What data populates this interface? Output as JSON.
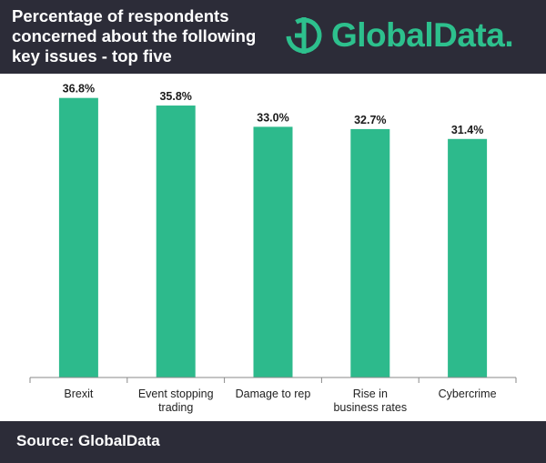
{
  "header": {
    "title": "Percentage of respondents concerned about the following key issues - top five",
    "logo_text": "GlobalData."
  },
  "footer": {
    "source": "Source: GlobalData"
  },
  "colors": {
    "bar": "#2dba8c",
    "header_bg": "#2c2c38",
    "brand": "#2dc08d"
  },
  "chart_data": {
    "type": "bar",
    "title": "Percentage of respondents concerned about the following key issues - top five",
    "categories": [
      [
        "Brexit"
      ],
      [
        "Event stopping",
        "trading"
      ],
      [
        "Damage to rep"
      ],
      [
        "Rise in",
        "business rates"
      ],
      [
        "Cybercrime"
      ]
    ],
    "values": [
      36.8,
      35.8,
      33.0,
      32.7,
      31.4
    ],
    "value_labels": [
      "36.8%",
      "35.8%",
      "33.0%",
      "32.7%",
      "31.4%"
    ],
    "xlabel": "",
    "ylabel": "",
    "ylim": [
      0,
      37
    ],
    "grid": false,
    "legend": "none"
  }
}
